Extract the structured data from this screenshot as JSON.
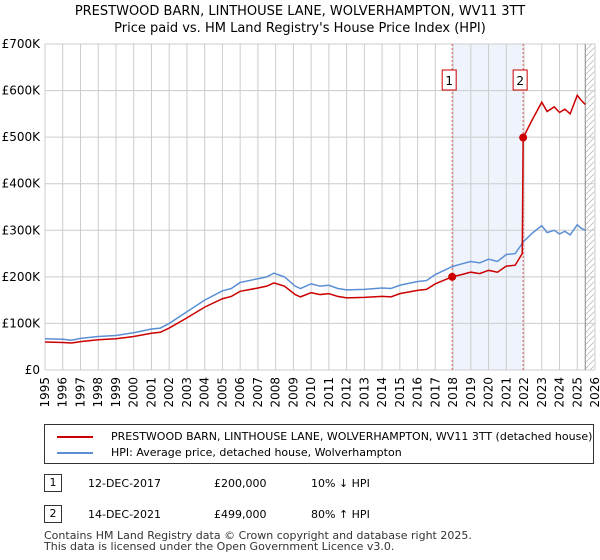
{
  "title": "PRESTWOOD BARN, LINTHOUSE LANE, WOLVERHAMPTON, WV11 3TT",
  "subtitle": "Price paid vs. HM Land Registry's House Price Index (HPI)",
  "legend": [
    {
      "label": "PRESTWOOD BARN, LINTHOUSE LANE, WOLVERHAMPTON, WV11 3TT (detached house)",
      "color": "#cc0000"
    },
    {
      "label": "HPI: Average price, detached house, Wolverhampton",
      "color": "#5b8fd4"
    }
  ],
  "transactions": [
    {
      "num": "1",
      "date": "12-DEC-2017",
      "price": "£200,000",
      "hpi": "10% ↓ HPI"
    },
    {
      "num": "2",
      "date": "14-DEC-2021",
      "price": "£499,000",
      "hpi": "80% ↑ HPI"
    }
  ],
  "footer": [
    "Contains HM Land Registry data © Crown copyright and database right 2025.",
    "This data is licensed under the Open Government Licence v3.0."
  ],
  "chart_data": {
    "type": "line",
    "xlim": [
      1995,
      2026
    ],
    "ylim": [
      0,
      700000
    ],
    "yticks": [
      0,
      100000,
      200000,
      300000,
      400000,
      500000,
      600000,
      700000
    ],
    "ytick_labels": [
      "£0",
      "£100K",
      "£200K",
      "£300K",
      "£400K",
      "£500K",
      "£600K",
      "£700K"
    ],
    "xticks": [
      1995,
      1996,
      1997,
      1998,
      1999,
      2000,
      2001,
      2002,
      2003,
      2004,
      2005,
      2006,
      2007,
      2008,
      2009,
      2010,
      2011,
      2012,
      2013,
      2014,
      2015,
      2016,
      2017,
      2018,
      2019,
      2020,
      2021,
      2022,
      2023,
      2024,
      2025,
      2026
    ],
    "grid": true,
    "shaded_period": [
      2017.95,
      2021.95
    ],
    "data_end": 2025.45,
    "markers": [
      {
        "label": "1",
        "x": 2017.95,
        "y": 200000
      },
      {
        "label": "2",
        "x": 2021.95,
        "y": 499000
      }
    ],
    "series": [
      {
        "name": "HPI",
        "color": "#5b8fd4",
        "points": [
          [
            1995,
            67000
          ],
          [
            1996,
            66000
          ],
          [
            1996.5,
            64000
          ],
          [
            1997,
            68000
          ],
          [
            1998,
            72000
          ],
          [
            1999,
            74000
          ],
          [
            2000,
            80000
          ],
          [
            2001,
            88000
          ],
          [
            2001.5,
            90000
          ],
          [
            2002,
            100000
          ],
          [
            2003,
            125000
          ],
          [
            2004,
            150000
          ],
          [
            2005,
            170000
          ],
          [
            2005.5,
            175000
          ],
          [
            2006,
            188000
          ],
          [
            2007,
            196000
          ],
          [
            2007.5,
            200000
          ],
          [
            2007.9,
            208000
          ],
          [
            2008.5,
            200000
          ],
          [
            2009.1,
            180000
          ],
          [
            2009.4,
            175000
          ],
          [
            2010,
            185000
          ],
          [
            2010.5,
            180000
          ],
          [
            2011,
            182000
          ],
          [
            2011.5,
            175000
          ],
          [
            2012,
            172000
          ],
          [
            2013,
            173000
          ],
          [
            2014,
            176000
          ],
          [
            2014.5,
            175000
          ],
          [
            2015,
            182000
          ],
          [
            2016,
            190000
          ],
          [
            2016.5,
            192000
          ],
          [
            2017,
            205000
          ],
          [
            2017.95,
            222000
          ],
          [
            2018.5,
            228000
          ],
          [
            2019,
            233000
          ],
          [
            2019.5,
            230000
          ],
          [
            2020,
            238000
          ],
          [
            2020.5,
            233000
          ],
          [
            2021,
            248000
          ],
          [
            2021.5,
            250000
          ],
          [
            2022,
            277000
          ],
          [
            2022.5,
            295000
          ],
          [
            2023,
            310000
          ],
          [
            2023.3,
            295000
          ],
          [
            2023.7,
            300000
          ],
          [
            2024,
            292000
          ],
          [
            2024.3,
            298000
          ],
          [
            2024.6,
            290000
          ],
          [
            2025,
            312000
          ],
          [
            2025.2,
            305000
          ],
          [
            2025.45,
            300000
          ]
        ]
      },
      {
        "name": "Price paid",
        "color": "#cc0000",
        "points": [
          [
            1995,
            60000
          ],
          [
            1996,
            59000
          ],
          [
            1996.5,
            58000
          ],
          [
            1997,
            61000
          ],
          [
            1998,
            65000
          ],
          [
            1999,
            67000
          ],
          [
            2000,
            72000
          ],
          [
            2001,
            79000
          ],
          [
            2001.5,
            81000
          ],
          [
            2002,
            90000
          ],
          [
            2003,
            112000
          ],
          [
            2004,
            135000
          ],
          [
            2005,
            153000
          ],
          [
            2005.5,
            158000
          ],
          [
            2006,
            169000
          ],
          [
            2007,
            176000
          ],
          [
            2007.5,
            180000
          ],
          [
            2007.9,
            187000
          ],
          [
            2008.5,
            180000
          ],
          [
            2009.1,
            162000
          ],
          [
            2009.4,
            157000
          ],
          [
            2010,
            166000
          ],
          [
            2010.5,
            162000
          ],
          [
            2011,
            164000
          ],
          [
            2011.5,
            158000
          ],
          [
            2012,
            155000
          ],
          [
            2013,
            156000
          ],
          [
            2014,
            158000
          ],
          [
            2014.5,
            157000
          ],
          [
            2015,
            164000
          ],
          [
            2016,
            171000
          ],
          [
            2016.5,
            173000
          ],
          [
            2017,
            185000
          ],
          [
            2017.95,
            200000
          ],
          [
            2018.5,
            205000
          ],
          [
            2019,
            210000
          ],
          [
            2019.5,
            207000
          ],
          [
            2020,
            214000
          ],
          [
            2020.5,
            210000
          ],
          [
            2021,
            223000
          ],
          [
            2021.5,
            225000
          ],
          [
            2021.9,
            250000
          ],
          [
            2021.95,
            499000
          ],
          [
            2022.5,
            540000
          ],
          [
            2023,
            575000
          ],
          [
            2023.3,
            555000
          ],
          [
            2023.7,
            565000
          ],
          [
            2024,
            553000
          ],
          [
            2024.3,
            560000
          ],
          [
            2024.6,
            550000
          ],
          [
            2025,
            590000
          ],
          [
            2025.2,
            580000
          ],
          [
            2025.45,
            570000
          ]
        ]
      }
    ]
  }
}
